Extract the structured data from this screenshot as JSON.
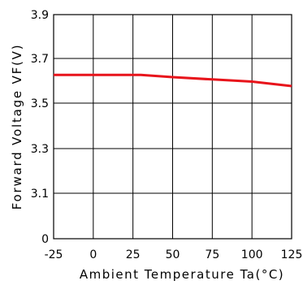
{
  "chart_data": {
    "type": "line",
    "title": "",
    "xlabel": "Ambient Temperature Ta(°C)",
    "ylabel": "Forward Voltage VF(V)",
    "xlim": [
      -25,
      125
    ],
    "x_ticks": [
      -25,
      0,
      25,
      50,
      75,
      100,
      125
    ],
    "x_tick_labels": [
      "-25",
      "0",
      "25",
      "50",
      "75",
      "100",
      "125"
    ],
    "y_tick_labels": [
      "0",
      "3.1",
      "3.3",
      "3.5",
      "3.7",
      "3.9"
    ],
    "y_axis_note": "broken axis: 0 at bottom, then 3.1 to 3.9",
    "grid": true,
    "line_color": "#e8141b",
    "series": [
      {
        "x": [
          -25,
          0,
          25,
          30,
          50,
          75,
          100,
          125
        ],
        "y": [
          3.63,
          3.63,
          3.63,
          3.63,
          3.62,
          3.61,
          3.6,
          3.58
        ]
      }
    ]
  }
}
